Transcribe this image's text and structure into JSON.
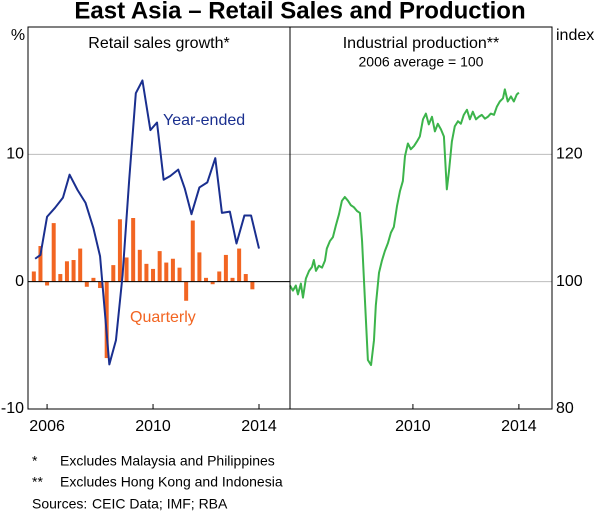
{
  "title": "East Asia – Retail Sales and Production",
  "chart_data": [
    {
      "type": "combo",
      "title": "Retail sales growth*",
      "ylabel": "%",
      "xlim": [
        2005.28,
        2015.17
      ],
      "xticks": [
        2006,
        2010,
        2014
      ],
      "ylim": [
        -10,
        20
      ],
      "yticks": [
        -10,
        0,
        10
      ],
      "grid": true,
      "series": [
        {
          "name": "Year-ended",
          "type": "line",
          "color": "#1a2f8f",
          "x": [
            2005.55,
            2005.75,
            2006.0,
            2006.3,
            2006.6,
            2006.85,
            2007.15,
            2007.45,
            2007.75,
            2008.0,
            2008.35,
            2008.6,
            2008.85,
            2009.1,
            2009.35,
            2009.6,
            2009.9,
            2010.15,
            2010.4,
            2010.65,
            2010.95,
            2011.2,
            2011.45,
            2011.75,
            2012.05,
            2012.35,
            2012.6,
            2012.9,
            2013.15,
            2013.45,
            2013.7,
            2014.0
          ],
          "values": [
            1.8,
            2.1,
            5.1,
            5.8,
            6.6,
            8.4,
            7.2,
            6.2,
            4.2,
            2.0,
            -6.5,
            -4.6,
            0.5,
            8.0,
            14.8,
            15.8,
            11.9,
            12.5,
            8.0,
            8.3,
            8.8,
            7.3,
            5.3,
            7.4,
            7.8,
            9.7,
            5.4,
            5.5,
            3.0,
            5.2,
            5.2,
            2.6
          ]
        },
        {
          "name": "Quarterly",
          "type": "bar",
          "color": "#f26522",
          "x": [
            2005.5,
            2005.75,
            2006.0,
            2006.25,
            2006.5,
            2006.75,
            2007.0,
            2007.25,
            2007.5,
            2007.75,
            2008.0,
            2008.25,
            2008.5,
            2008.75,
            2009.0,
            2009.25,
            2009.5,
            2009.75,
            2010.0,
            2010.25,
            2010.5,
            2010.75,
            2011.0,
            2011.25,
            2011.5,
            2011.75,
            2012.0,
            2012.25,
            2012.5,
            2012.75,
            2013.0,
            2013.25,
            2013.5,
            2013.75
          ],
          "values": [
            0.8,
            2.8,
            -0.3,
            4.6,
            0.6,
            1.6,
            1.7,
            2.6,
            -0.4,
            0.3,
            -0.5,
            -6.0,
            1.3,
            4.9,
            1.9,
            5.0,
            2.5,
            1.4,
            1.0,
            2.4,
            1.5,
            1.8,
            1.1,
            -1.5,
            4.8,
            2.3,
            0.3,
            -0.2,
            0.8,
            2.1,
            0.3,
            2.6,
            0.6,
            -0.6
          ]
        }
      ]
    },
    {
      "type": "line",
      "title": "Industrial production**",
      "subtitle": "2006 average = 100",
      "ylabel": "index",
      "xlim": [
        2005.36,
        2015.25
      ],
      "xticks": [
        2010,
        2014
      ],
      "ylim": [
        80,
        140
      ],
      "yticks": [
        80,
        100,
        120
      ],
      "grid": true,
      "series": [
        {
          "name": "Industrial production",
          "color": "#3cb44b",
          "x": [
            2005.36,
            2005.47,
            2005.58,
            2005.66,
            2005.77,
            2005.85,
            2005.96,
            2006.08,
            2006.19,
            2006.26,
            2006.34,
            2006.45,
            2006.57,
            2006.68,
            2006.75,
            2006.87,
            2006.98,
            2007.09,
            2007.21,
            2007.32,
            2007.43,
            2007.55,
            2007.66,
            2007.77,
            2007.89,
            2008.0,
            2008.08,
            2008.19,
            2008.3,
            2008.42,
            2008.53,
            2008.6,
            2008.72,
            2008.83,
            2008.94,
            2009.06,
            2009.17,
            2009.28,
            2009.4,
            2009.51,
            2009.62,
            2009.7,
            2009.81,
            2009.92,
            2010.04,
            2010.15,
            2010.26,
            2010.38,
            2010.49,
            2010.6,
            2010.72,
            2010.83,
            2010.94,
            2011.06,
            2011.17,
            2011.28,
            2011.36,
            2011.47,
            2011.58,
            2011.7,
            2011.81,
            2011.92,
            2012.04,
            2012.15,
            2012.26,
            2012.38,
            2012.49,
            2012.6,
            2012.72,
            2012.83,
            2012.94,
            2013.06,
            2013.17,
            2013.28,
            2013.4,
            2013.47,
            2013.58,
            2013.7,
            2013.81,
            2013.92,
            2014.0
          ],
          "values": [
            99.4,
            98.6,
            99.4,
            98.0,
            99.7,
            97.5,
            100.5,
            101.7,
            102.3,
            103.4,
            101.7,
            102.5,
            102.2,
            103.3,
            105.2,
            106.4,
            107.0,
            108.8,
            110.6,
            112.7,
            113.3,
            112.7,
            112.0,
            111.7,
            111.1,
            110.8,
            106.4,
            97.0,
            87.7,
            86.9,
            90.8,
            96.3,
            101.4,
            103.3,
            104.8,
            106.1,
            107.7,
            108.6,
            111.9,
            114.2,
            115.8,
            119.7,
            121.7,
            120.8,
            121.3,
            122.0,
            122.8,
            125.5,
            126.4,
            124.7,
            125.9,
            123.6,
            124.8,
            123.9,
            122.8,
            114.5,
            117.3,
            122.0,
            124.4,
            125.2,
            124.8,
            126.2,
            127.0,
            125.5,
            126.7,
            125.5,
            125.9,
            126.2,
            125.6,
            125.9,
            126.4,
            126.2,
            127.5,
            128.3,
            128.8,
            130.2,
            128.3,
            129.1,
            128.3,
            129.4,
            129.7
          ]
        }
      ]
    }
  ],
  "notes": [
    {
      "marker": "*",
      "text": "Excludes Malaysia and Philippines"
    },
    {
      "marker": "**",
      "text": "Excludes Hong Kong and Indonesia"
    }
  ],
  "sources": {
    "label": "Sources:",
    "text": "CEIC Data; IMF; RBA"
  }
}
